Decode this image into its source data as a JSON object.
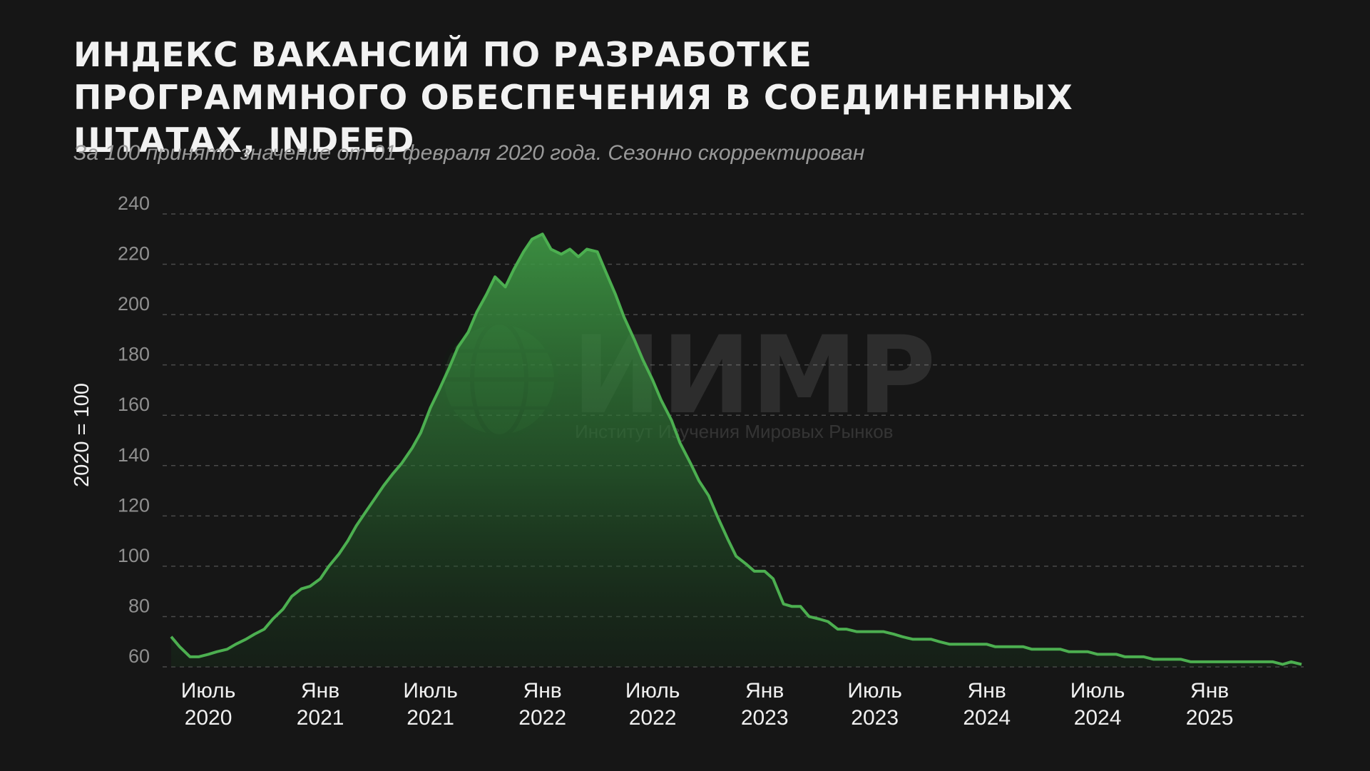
{
  "header": {
    "title": "Индекс вакансий по разработке программного обеспечения в Соединенных Штатах, Indeed",
    "subtitle": "За 100 принято значение от 01 февраля 2020 года. Сезонно скорректирован"
  },
  "watermark": {
    "logo_text": "ИИМР",
    "tagline": "Институт Изучения Мировых Рынков",
    "icon": "globe-icon"
  },
  "colors": {
    "background": "#161616",
    "line": "#4caf50",
    "fill_top": "#3f9a45",
    "grid": "#4a4a4a"
  },
  "chart_data": {
    "type": "area",
    "title": "Индекс вакансий по разработке программного обеспечения в Соединенных Штатах, Indeed",
    "subtitle": "За 100 принято значение от 01 февраля 2020 года. Сезонно скорректирован",
    "ylabel": "2020 = 100",
    "xlabel": "",
    "ylim": [
      60,
      240
    ],
    "yticks": [
      60,
      80,
      100,
      120,
      140,
      160,
      180,
      200,
      220,
      240
    ],
    "xlim": [
      "2020-05-01",
      "2025-06-01"
    ],
    "xticks": [
      {
        "date": "2020-07-01",
        "label": [
          "Июль",
          "2020"
        ]
      },
      {
        "date": "2021-01-01",
        "label": [
          "Янв",
          "2021"
        ]
      },
      {
        "date": "2021-07-01",
        "label": [
          "Июль",
          "2021"
        ]
      },
      {
        "date": "2022-01-01",
        "label": [
          "Янв",
          "2022"
        ]
      },
      {
        "date": "2022-07-01",
        "label": [
          "Июль",
          "2022"
        ]
      },
      {
        "date": "2023-01-01",
        "label": [
          "Янв",
          "2023"
        ]
      },
      {
        "date": "2023-07-01",
        "label": [
          "Июль",
          "2023"
        ]
      },
      {
        "date": "2024-01-01",
        "label": [
          "Янв",
          "2024"
        ]
      },
      {
        "date": "2024-07-01",
        "label": [
          "Июль",
          "2024"
        ]
      },
      {
        "date": "2025-01-01",
        "label": [
          "Янв",
          "2025"
        ]
      }
    ],
    "grid": true,
    "legend": "none",
    "series": [
      {
        "points": [
          [
            "2020-05-01",
            72
          ],
          [
            "2020-05-15",
            68
          ],
          [
            "2020-06-01",
            64
          ],
          [
            "2020-06-15",
            64
          ],
          [
            "2020-07-01",
            65
          ],
          [
            "2020-07-15",
            66
          ],
          [
            "2020-08-01",
            67
          ],
          [
            "2020-08-15",
            69
          ],
          [
            "2020-09-01",
            71
          ],
          [
            "2020-09-15",
            73
          ],
          [
            "2020-10-01",
            75
          ],
          [
            "2020-10-15",
            79
          ],
          [
            "2020-11-01",
            83
          ],
          [
            "2020-11-15",
            88
          ],
          [
            "2020-12-01",
            91
          ],
          [
            "2020-12-15",
            92
          ],
          [
            "2021-01-01",
            95
          ],
          [
            "2021-01-15",
            100
          ],
          [
            "2021-02-01",
            105
          ],
          [
            "2021-02-15",
            110
          ],
          [
            "2021-03-01",
            116
          ],
          [
            "2021-03-15",
            121
          ],
          [
            "2021-04-01",
            127
          ],
          [
            "2021-04-15",
            132
          ],
          [
            "2021-05-01",
            137
          ],
          [
            "2021-05-15",
            141
          ],
          [
            "2021-06-01",
            147
          ],
          [
            "2021-06-15",
            153
          ],
          [
            "2021-07-01",
            163
          ],
          [
            "2021-07-15",
            170
          ],
          [
            "2021-08-01",
            179
          ],
          [
            "2021-08-15",
            187
          ],
          [
            "2021-09-01",
            193
          ],
          [
            "2021-09-15",
            201
          ],
          [
            "2021-10-01",
            208
          ],
          [
            "2021-10-15",
            215
          ],
          [
            "2021-11-01",
            211
          ],
          [
            "2021-11-15",
            218
          ],
          [
            "2021-12-01",
            225
          ],
          [
            "2021-12-15",
            230
          ],
          [
            "2022-01-01",
            232
          ],
          [
            "2022-01-15",
            226
          ],
          [
            "2022-02-01",
            224
          ],
          [
            "2022-02-15",
            226
          ],
          [
            "2022-03-01",
            223
          ],
          [
            "2022-03-15",
            226
          ],
          [
            "2022-04-01",
            225
          ],
          [
            "2022-04-15",
            217
          ],
          [
            "2022-05-01",
            208
          ],
          [
            "2022-05-15",
            199
          ],
          [
            "2022-06-01",
            190
          ],
          [
            "2022-06-15",
            182
          ],
          [
            "2022-07-01",
            174
          ],
          [
            "2022-07-15",
            166
          ],
          [
            "2022-08-01",
            158
          ],
          [
            "2022-08-15",
            149
          ],
          [
            "2022-09-01",
            141
          ],
          [
            "2022-09-15",
            134
          ],
          [
            "2022-10-01",
            128
          ],
          [
            "2022-10-15",
            120
          ],
          [
            "2022-11-01",
            111
          ],
          [
            "2022-11-15",
            104
          ],
          [
            "2022-12-01",
            101
          ],
          [
            "2022-12-15",
            98
          ],
          [
            "2023-01-01",
            98
          ],
          [
            "2023-01-15",
            95
          ],
          [
            "2023-02-01",
            85
          ],
          [
            "2023-02-15",
            84
          ],
          [
            "2023-03-01",
            84
          ],
          [
            "2023-03-15",
            80
          ],
          [
            "2023-04-01",
            79
          ],
          [
            "2023-04-15",
            78
          ],
          [
            "2023-05-01",
            75
          ],
          [
            "2023-05-15",
            75
          ],
          [
            "2023-06-01",
            74
          ],
          [
            "2023-06-15",
            74
          ],
          [
            "2023-07-01",
            74
          ],
          [
            "2023-07-15",
            74
          ],
          [
            "2023-08-01",
            73
          ],
          [
            "2023-08-15",
            72
          ],
          [
            "2023-09-01",
            71
          ],
          [
            "2023-09-15",
            71
          ],
          [
            "2023-10-01",
            71
          ],
          [
            "2023-10-15",
            70
          ],
          [
            "2023-11-01",
            69
          ],
          [
            "2023-11-15",
            69
          ],
          [
            "2023-12-01",
            69
          ],
          [
            "2023-12-15",
            69
          ],
          [
            "2024-01-01",
            69
          ],
          [
            "2024-01-15",
            68
          ],
          [
            "2024-02-01",
            68
          ],
          [
            "2024-02-15",
            68
          ],
          [
            "2024-03-01",
            68
          ],
          [
            "2024-03-15",
            67
          ],
          [
            "2024-04-01",
            67
          ],
          [
            "2024-04-15",
            67
          ],
          [
            "2024-05-01",
            67
          ],
          [
            "2024-05-15",
            66
          ],
          [
            "2024-06-01",
            66
          ],
          [
            "2024-06-15",
            66
          ],
          [
            "2024-07-01",
            65
          ],
          [
            "2024-07-15",
            65
          ],
          [
            "2024-08-01",
            65
          ],
          [
            "2024-08-15",
            64
          ],
          [
            "2024-09-01",
            64
          ],
          [
            "2024-09-15",
            64
          ],
          [
            "2024-10-01",
            63
          ],
          [
            "2024-10-15",
            63
          ],
          [
            "2024-11-01",
            63
          ],
          [
            "2024-11-15",
            63
          ],
          [
            "2024-12-01",
            62
          ],
          [
            "2024-12-15",
            62
          ],
          [
            "2025-01-01",
            62
          ],
          [
            "2025-01-15",
            62
          ],
          [
            "2025-02-01",
            62
          ],
          [
            "2025-02-15",
            62
          ],
          [
            "2025-03-01",
            62
          ],
          [
            "2025-03-15",
            62
          ],
          [
            "2025-04-01",
            62
          ],
          [
            "2025-04-15",
            62
          ],
          [
            "2025-05-01",
            61
          ],
          [
            "2025-05-15",
            62
          ],
          [
            "2025-06-01",
            61
          ]
        ]
      }
    ]
  }
}
